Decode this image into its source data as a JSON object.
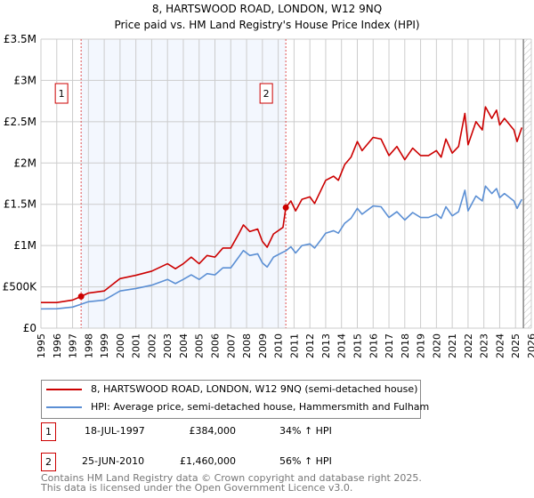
{
  "chart_data": {
    "type": "line",
    "title": "8, HARTSWOOD ROAD, LONDON, W12 9NQ",
    "subtitle": "Price paid vs. HM Land Registry's House Price Index (HPI)",
    "xlim": [
      1995,
      2026
    ],
    "ylim": [
      0,
      3500000
    ],
    "y_ticks": [
      {
        "v": 0,
        "label": "£0"
      },
      {
        "v": 500000,
        "label": "£500K"
      },
      {
        "v": 1000000,
        "label": "£1M"
      },
      {
        "v": 1500000,
        "label": "£1.5M"
      },
      {
        "v": 2000000,
        "label": "£2M"
      },
      {
        "v": 2500000,
        "label": "£2.5M"
      },
      {
        "v": 3000000,
        "label": "£3M"
      },
      {
        "v": 3500000,
        "label": "£3.5M"
      }
    ],
    "x_ticks": [
      "1995",
      "1996",
      "1997",
      "1998",
      "1999",
      "2000",
      "2001",
      "2002",
      "2003",
      "2004",
      "2005",
      "2006",
      "2007",
      "2008",
      "2009",
      "2010",
      "2011",
      "2012",
      "2013",
      "2014",
      "2015",
      "2016",
      "2017",
      "2018",
      "2019",
      "2020",
      "2021",
      "2022",
      "2023",
      "2024",
      "2025",
      "2026"
    ],
    "grid": true,
    "shaded_range": [
      1997.54,
      2010.48
    ],
    "hatched_from": 2025.5,
    "x": [
      1995.0,
      1996.0,
      1997.0,
      1997.54,
      1998.0,
      1999.0,
      2000.0,
      2001.0,
      2002.0,
      2003.0,
      2003.5,
      2004.0,
      2004.5,
      2005.0,
      2005.5,
      2006.0,
      2006.5,
      2007.0,
      2007.5,
      2007.8,
      2008.2,
      2008.7,
      2009.0,
      2009.3,
      2009.7,
      2010.3,
      2010.48,
      2010.8,
      2011.1,
      2011.5,
      2012.0,
      2012.3,
      2012.7,
      2013.0,
      2013.5,
      2013.8,
      2014.2,
      2014.6,
      2015.0,
      2015.3,
      2016.0,
      2016.5,
      2017.0,
      2017.5,
      2018.0,
      2018.5,
      2019.0,
      2019.5,
      2020.0,
      2020.3,
      2020.6,
      2021.0,
      2021.4,
      2021.8,
      2022.0,
      2022.5,
      2022.9,
      2023.1,
      2023.5,
      2023.8,
      2024.0,
      2024.3,
      2024.9,
      2025.1,
      2025.4
    ],
    "series": [
      {
        "name": "8, HARTSWOOD ROAD, LONDON, W12 9NQ (semi-detached house)",
        "color": "#cc0000",
        "values": [
          310000,
          310000,
          340000,
          384000,
          425000,
          450000,
          600000,
          640000,
          690000,
          780000,
          720000,
          780000,
          860000,
          780000,
          880000,
          860000,
          970000,
          970000,
          1140000,
          1250000,
          1170000,
          1200000,
          1050000,
          980000,
          1140000,
          1220000,
          1460000,
          1540000,
          1420000,
          1560000,
          1590000,
          1510000,
          1670000,
          1790000,
          1840000,
          1790000,
          1980000,
          2070000,
          2260000,
          2150000,
          2310000,
          2290000,
          2090000,
          2200000,
          2040000,
          2180000,
          2090000,
          2090000,
          2150000,
          2070000,
          2290000,
          2120000,
          2200000,
          2600000,
          2220000,
          2500000,
          2400000,
          2680000,
          2540000,
          2640000,
          2460000,
          2540000,
          2400000,
          2260000,
          2430000
        ]
      },
      {
        "name": "HPI: Average price, semi-detached house, Hammersmith and Fulham",
        "color": "#5b8fd4",
        "values": [
          233000,
          235000,
          255000,
          289000,
          320000,
          340000,
          450000,
          480000,
          520000,
          590000,
          540000,
          590000,
          645000,
          590000,
          660000,
          645000,
          730000,
          730000,
          860000,
          940000,
          880000,
          900000,
          790000,
          740000,
          860000,
          920000,
          936000,
          985000,
          910000,
          1000000,
          1020000,
          970000,
          1070000,
          1150000,
          1180000,
          1150000,
          1270000,
          1330000,
          1450000,
          1380000,
          1480000,
          1470000,
          1340000,
          1410000,
          1310000,
          1400000,
          1340000,
          1340000,
          1380000,
          1330000,
          1470000,
          1360000,
          1410000,
          1670000,
          1420000,
          1600000,
          1540000,
          1720000,
          1630000,
          1690000,
          1580000,
          1630000,
          1540000,
          1450000,
          1560000
        ]
      }
    ],
    "sales": [
      {
        "id": "1",
        "x": 1997.54,
        "y": 384000,
        "date": "18-JUL-1997",
        "price": "£384,000",
        "hpi": "34% ↑ HPI"
      },
      {
        "id": "2",
        "x": 2010.48,
        "y": 1460000,
        "date": "25-JUN-2010",
        "price": "£1,460,000",
        "hpi": "56% ↑ HPI"
      }
    ],
    "legend_position": "bottom"
  },
  "footer": {
    "line1": "Contains HM Land Registry data © Crown copyright and database right 2025.",
    "line2": "This data is licensed under the Open Government Licence v3.0."
  }
}
